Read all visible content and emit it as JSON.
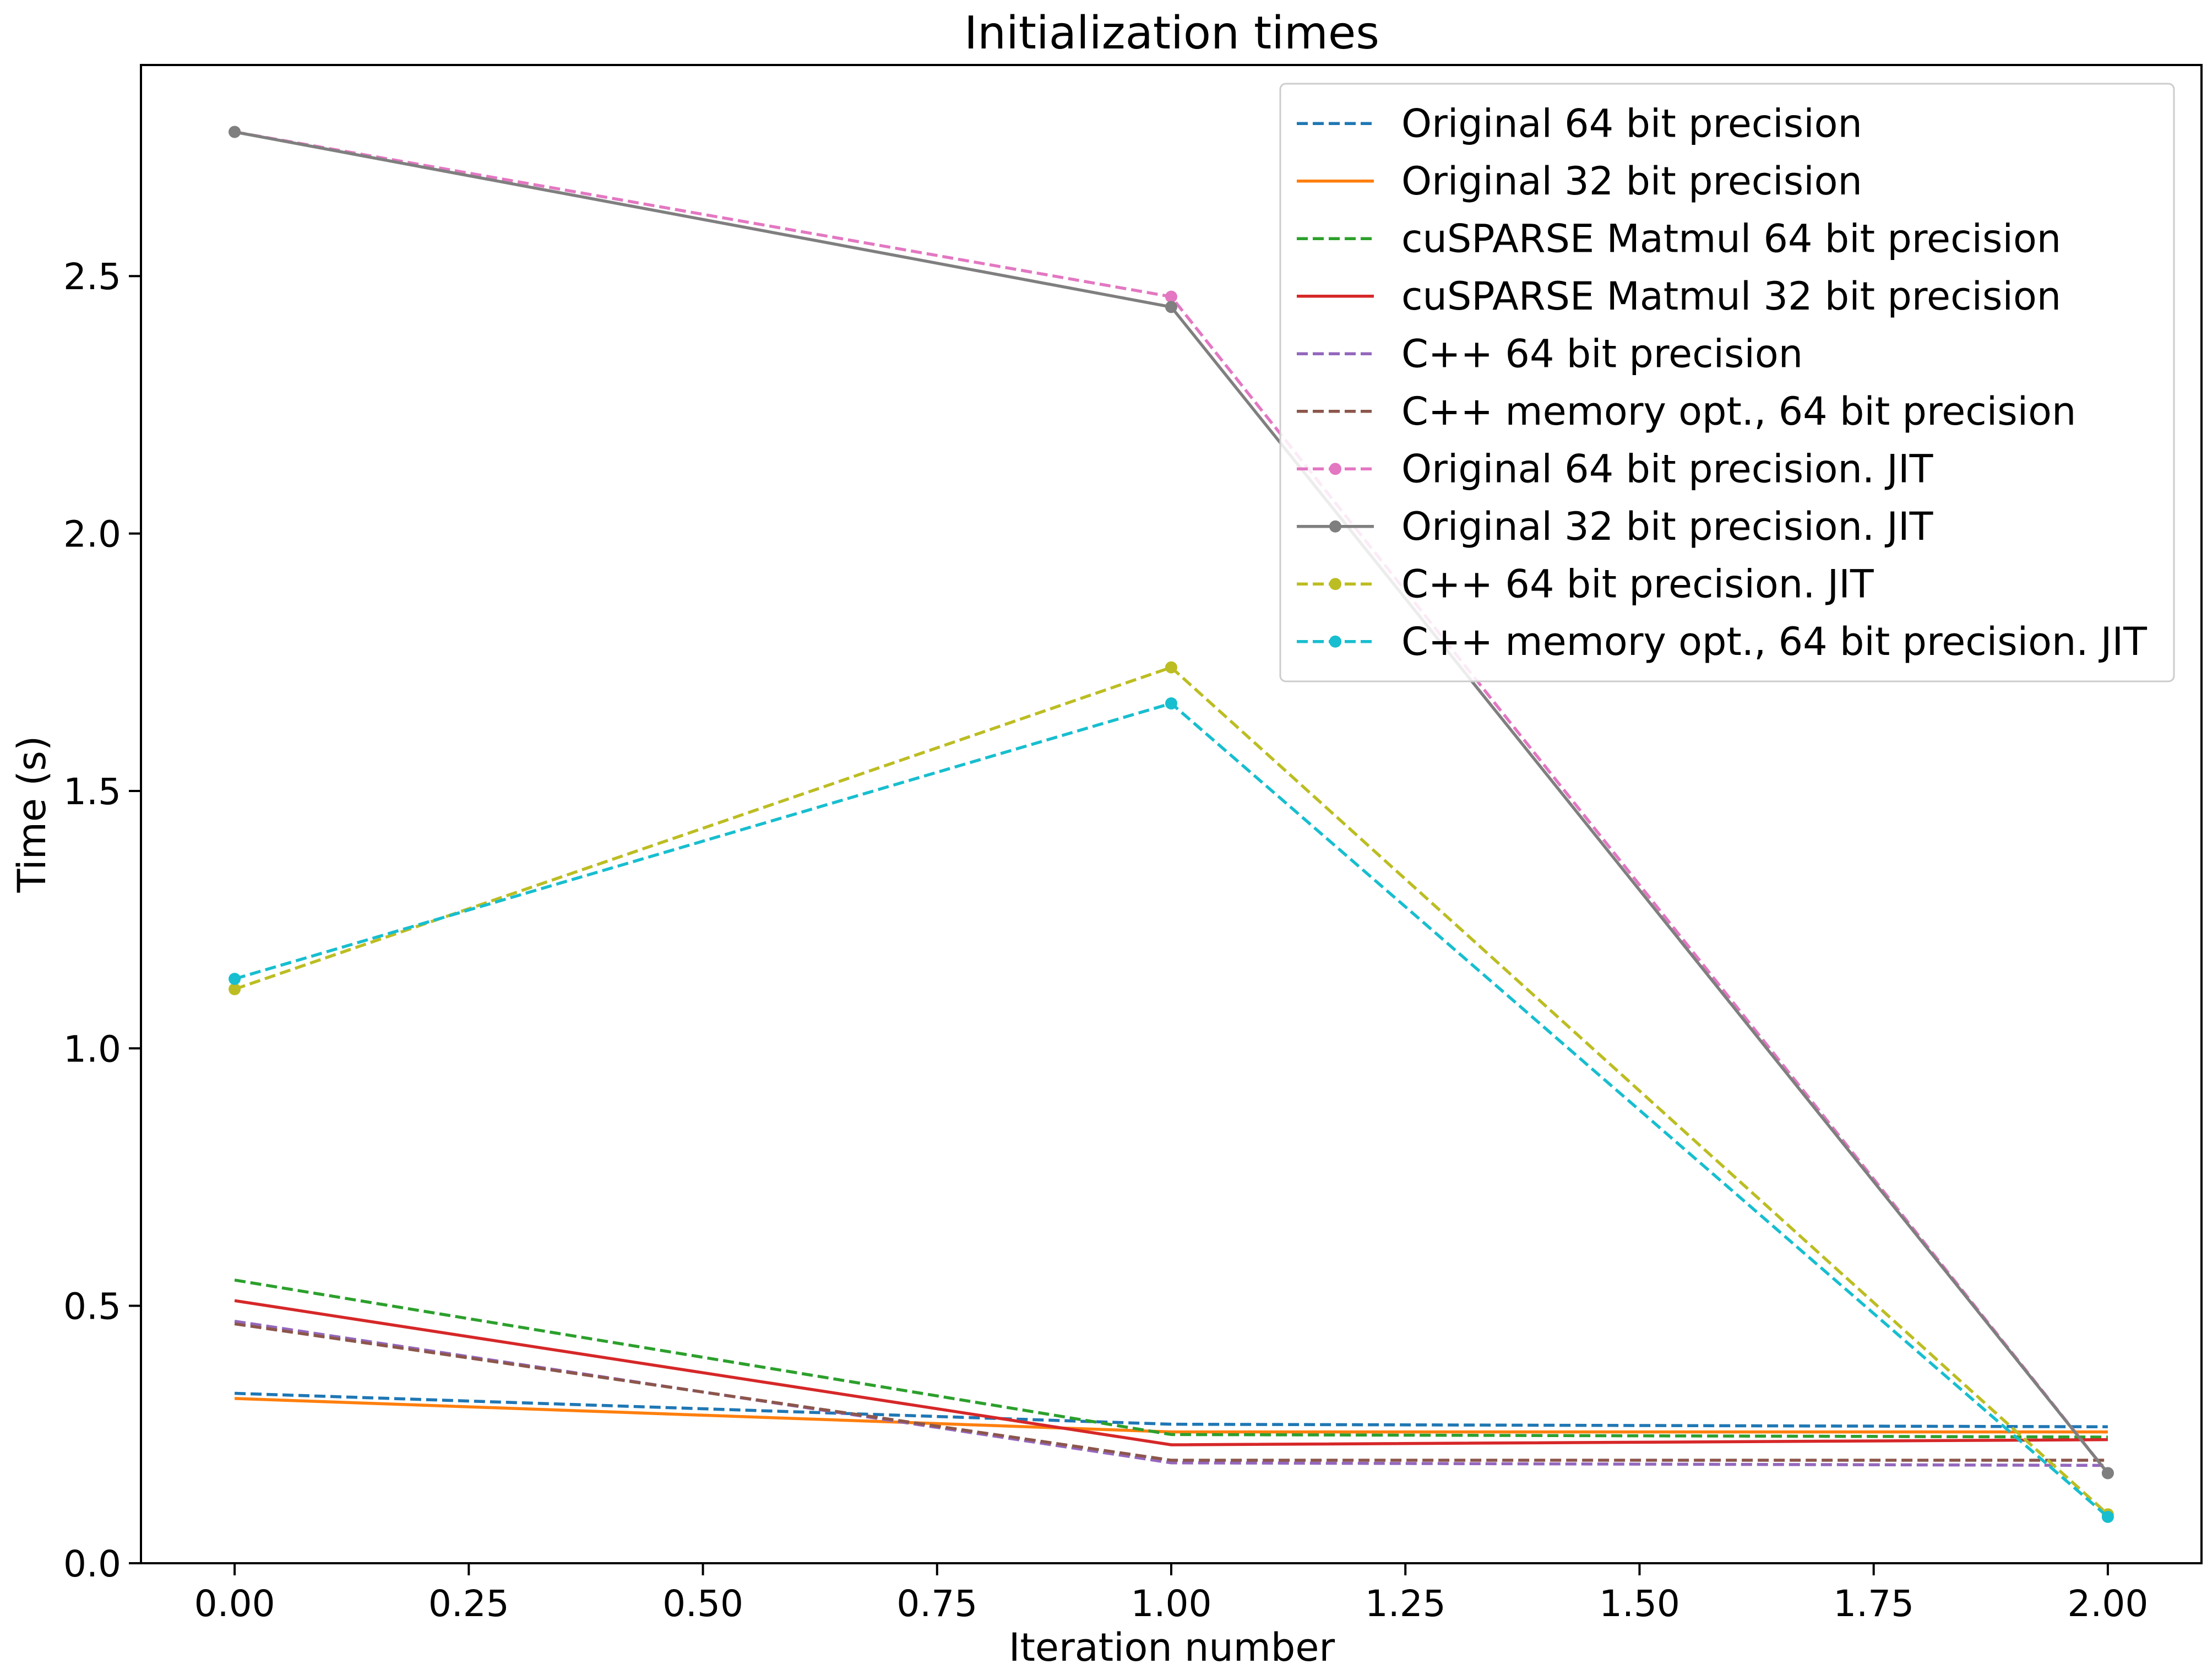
{
  "chart_data": {
    "type": "line",
    "title": "Initialization times",
    "xlabel": "Iteration number",
    "ylabel": "Time (s)",
    "xlim": [
      -0.1,
      2.1
    ],
    "ylim": [
      0.0,
      2.91
    ],
    "xticks": [
      0.0,
      0.25,
      0.5,
      0.75,
      1.0,
      1.25,
      1.5,
      1.75,
      2.0
    ],
    "xtick_labels": [
      "0.00",
      "0.25",
      "0.50",
      "0.75",
      "1.00",
      "1.25",
      "1.50",
      "1.75",
      "2.00"
    ],
    "yticks": [
      0.0,
      0.5,
      1.0,
      1.5,
      2.0,
      2.5
    ],
    "ytick_labels": [
      "0.0",
      "0.5",
      "1.0",
      "1.5",
      "2.0",
      "2.5"
    ],
    "grid": false,
    "legend_position": "top-right",
    "x": [
      0,
      1,
      2
    ],
    "series": [
      {
        "name": "Original 64 bit precision",
        "values": [
          0.33,
          0.27,
          0.265
        ],
        "color": "#1f77b4",
        "dashed": true,
        "markers": false
      },
      {
        "name": "Original 32 bit precision",
        "values": [
          0.32,
          0.255,
          0.255
        ],
        "color": "#ff7f0e",
        "dashed": false,
        "markers": false
      },
      {
        "name": "cuSPARSE Matmul 64 bit precision",
        "values": [
          0.55,
          0.25,
          0.245
        ],
        "color": "#2ca02c",
        "dashed": true,
        "markers": false
      },
      {
        "name": "cuSPARSE Matmul 32 bit precision",
        "values": [
          0.51,
          0.23,
          0.24
        ],
        "color": "#d62728",
        "dashed": false,
        "markers": false
      },
      {
        "name": "C++ 64 bit precision",
        "values": [
          0.47,
          0.195,
          0.19
        ],
        "color": "#9467bd",
        "dashed": true,
        "markers": false
      },
      {
        "name": "C++ memory opt., 64 bit precision",
        "values": [
          0.465,
          0.2,
          0.2
        ],
        "color": "#8c564b",
        "dashed": true,
        "markers": false
      },
      {
        "name": "Original 64 bit precision. JIT",
        "values": [
          2.78,
          2.46,
          0.175
        ],
        "color": "#e377c2",
        "dashed": true,
        "markers": true
      },
      {
        "name": "Original 32 bit precision. JIT",
        "values": [
          2.78,
          2.44,
          0.175
        ],
        "color": "#7f7f7f",
        "dashed": false,
        "markers": true
      },
      {
        "name": "C++ 64 bit precision. JIT",
        "values": [
          1.115,
          1.74,
          0.095
        ],
        "color": "#bcbd22",
        "dashed": true,
        "markers": true
      },
      {
        "name": "C++ memory opt., 64 bit precision. JIT",
        "values": [
          1.135,
          1.67,
          0.09
        ],
        "color": "#17becf",
        "dashed": true,
        "markers": true
      }
    ]
  }
}
